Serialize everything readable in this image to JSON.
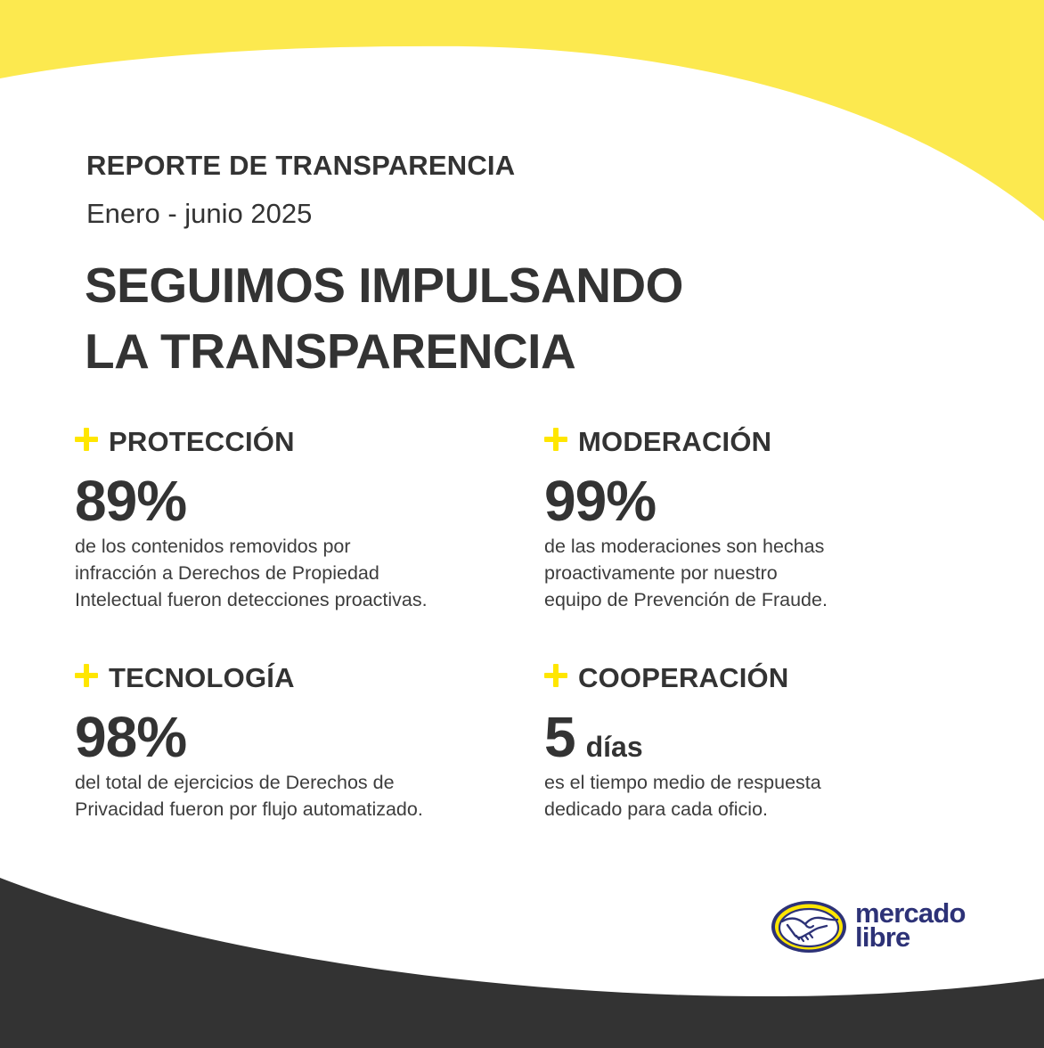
{
  "report": {
    "label": "REPORTE DE TRANSPARENCIA",
    "period": "Enero - junio 2025"
  },
  "headline": {
    "line1": "SEGUIMOS IMPULSANDO",
    "line2": "LA TRANSPARENCIA"
  },
  "stats": [
    {
      "title": "PROTECCIÓN",
      "value": "89%",
      "unit": "",
      "description": [
        "de los contenidos removidos por",
        "infracción a Derechos de Propiedad",
        "Intelectual fueron detecciones proactivas."
      ]
    },
    {
      "title": "MODERACIÓN",
      "value": "99%",
      "unit": "",
      "description": [
        "de las moderaciones son hechas",
        "proactivamente por nuestro",
        "equipo de Prevención de Fraude."
      ]
    },
    {
      "title": "TECNOLOGÍA",
      "value": "98%",
      "unit": "",
      "description": [
        "del total de ejercicios de Derechos de",
        "Privacidad fueron por flujo automatizado."
      ]
    },
    {
      "title": "COOPERACIÓN",
      "value": "5",
      "unit": "días",
      "description": [
        "es el tiempo medio de respuesta",
        "dedicado para cada oficio."
      ]
    }
  ],
  "brand": {
    "line1": "mercado",
    "line2": "libre",
    "logo_icon": "handshake-icon"
  },
  "colors": {
    "accent_yellow": "#ffe600",
    "dark": "#333333",
    "brand_blue": "#2d3277",
    "background": "#ffffff"
  }
}
